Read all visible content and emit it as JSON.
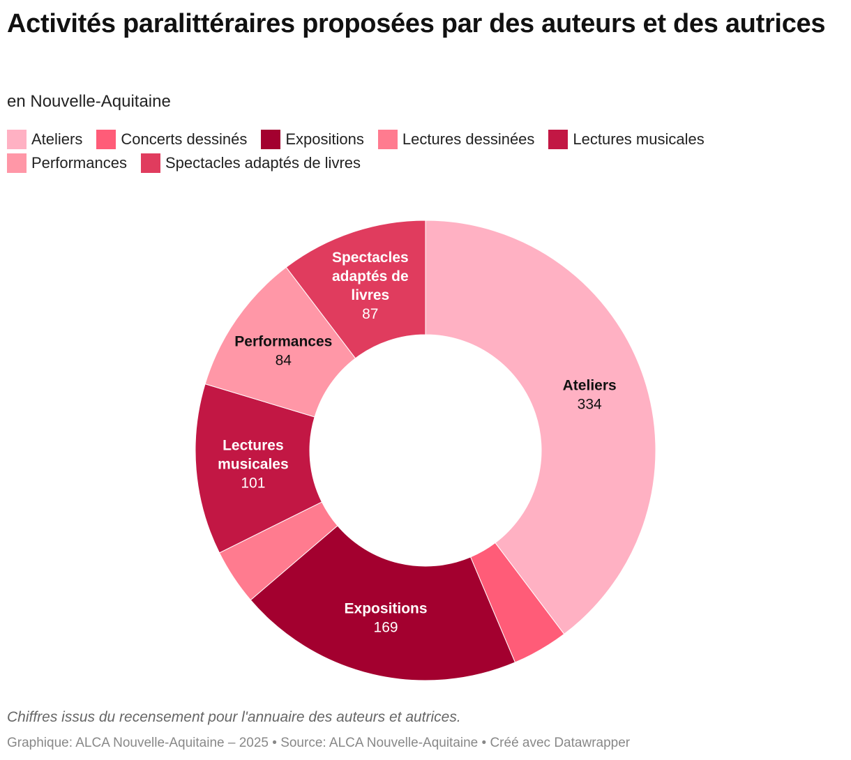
{
  "header": {
    "title": "Activités paralittéraires proposées par des auteurs et des autrices",
    "subtitle": "en Nouvelle-Aquitaine"
  },
  "chart_data": {
    "type": "pie",
    "variant": "donut",
    "title": "Activités paralittéraires proposées par des auteurs et des autrices",
    "subtitle": "en Nouvelle-Aquitaine",
    "legend_position": "top",
    "categories": [
      "Ateliers",
      "Concerts dessinés",
      "Expositions",
      "Lectures dessinées",
      "Lectures musicales",
      "Performances",
      "Spectacles adaptés de livres"
    ],
    "values": [
      334,
      33,
      169,
      33,
      101,
      84,
      87
    ],
    "colors": [
      "#ffb1c3",
      "#ff5c78",
      "#a3002f",
      "#ff7b8f",
      "#c21744",
      "#ff97a7",
      "#e03c5e"
    ],
    "label_colors": [
      "#111111",
      "#111111",
      "#ffffff",
      "#111111",
      "#ffffff",
      "#111111",
      "#ffffff"
    ],
    "show_label": [
      true,
      false,
      true,
      false,
      true,
      true,
      true
    ],
    "slice_labels": [
      [
        "Ateliers"
      ],
      [
        "Concerts dessinés"
      ],
      [
        "Expositions"
      ],
      [
        "Lectures dessinées"
      ],
      [
        "Lectures",
        "musicales"
      ],
      [
        "Performances"
      ],
      [
        "Spectacles",
        "adaptés de",
        "livres"
      ]
    ],
    "order_clockwise": [
      "Ateliers",
      "Concerts dessinés",
      "Expositions",
      "Lectures dessinées",
      "Lectures musicales",
      "Performances",
      "Spectacles adaptés de livres"
    ]
  },
  "notes": "Chiffres issus du recensement pour l'annuaire des auteurs et autrices.",
  "footer": "Graphique: ALCA Nouvelle-Aquitaine – 2025 • Source: ALCA Nouvelle-Aquitaine • Créé avec Datawrapper"
}
